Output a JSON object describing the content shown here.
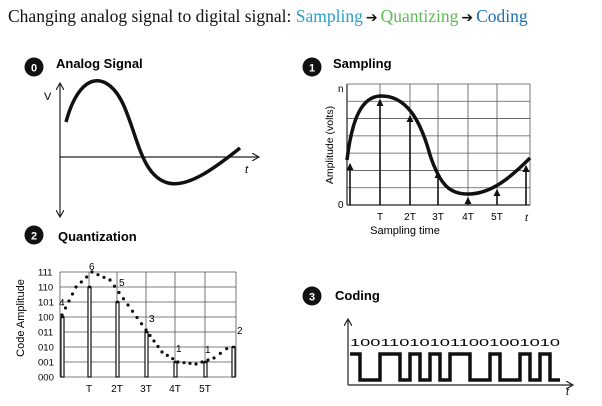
{
  "heading": {
    "prefix": "Changing analog signal to digital signal: ",
    "steps": [
      {
        "label": "Sampling",
        "color": "#2aa0c9"
      },
      {
        "label": "Quantizing",
        "color": "#5dbb53"
      },
      {
        "label": "Coding",
        "color": "#1a6fb3"
      }
    ],
    "arrow_glyph": "➔"
  },
  "panels": {
    "analog": {
      "number": "0",
      "title": "Analog Signal",
      "y_label": "V",
      "x_label": "t"
    },
    "sampling": {
      "number": "1",
      "title": "Sampling",
      "y_label": "Amplitude (volts)",
      "y_top": "n",
      "y_bottom": "0",
      "x_ticks": [
        "T",
        "2T",
        "3T",
        "4T",
        "5T"
      ],
      "x_end": "t",
      "x_title": "Sampling time"
    },
    "quantization": {
      "number": "2",
      "title": "Quantization",
      "y_label": "Code Amplitude",
      "codes": [
        "111",
        "110",
        "101",
        "100",
        "011",
        "010",
        "001",
        "000"
      ],
      "x_ticks": [
        "T",
        "2T",
        "3T",
        "4T",
        "5T"
      ],
      "sample_values": [
        "4",
        "6",
        "5",
        "3",
        "1",
        "1",
        "2"
      ]
    },
    "coding": {
      "number": "3",
      "title": "Coding",
      "bits": "100110101011001001010",
      "x_label": "t"
    }
  }
}
